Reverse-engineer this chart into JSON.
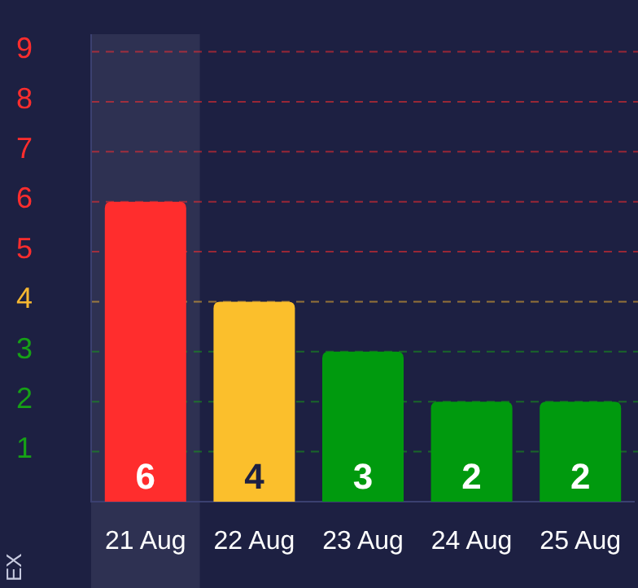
{
  "chart_data": {
    "type": "bar",
    "categories": [
      "21 Aug",
      "22 Aug",
      "23 Aug",
      "24 Aug",
      "25 Aug"
    ],
    "values": [
      6,
      4,
      3,
      2,
      2
    ],
    "data_labels": true,
    "colors": [
      "#ff2d2d",
      "#fbbf2c",
      "#009a0e",
      "#009a0e",
      "#009a0e"
    ],
    "ylim": [
      0,
      9.35
    ],
    "yticks": [
      1,
      2,
      3,
      4,
      5,
      6,
      7,
      8,
      9
    ],
    "ylabel": "EX",
    "ref_lines": [
      {
        "axis": "y",
        "value": 1,
        "color": "#16a116",
        "line_style": "dashed"
      },
      {
        "axis": "y",
        "value": 2,
        "color": "#16a116",
        "line_style": "dashed"
      },
      {
        "axis": "y",
        "value": 3,
        "color": "#16a116",
        "line_style": "dashed"
      },
      {
        "axis": "y",
        "value": 4,
        "color": "#f5b731",
        "line_style": "dashed"
      },
      {
        "axis": "y",
        "value": 5,
        "color": "#ff2d2d",
        "line_style": "dashed"
      },
      {
        "axis": "y",
        "value": 6,
        "color": "#ff2d2d",
        "line_style": "dashed"
      },
      {
        "axis": "y",
        "value": 7,
        "color": "#ff2d2d",
        "line_style": "dashed"
      },
      {
        "axis": "y",
        "value": 8,
        "color": "#ff2d2d",
        "line_style": "dashed"
      },
      {
        "axis": "y",
        "value": 9,
        "color": "#ff2d2d",
        "line_style": "dashed"
      }
    ],
    "bands": [
      {
        "axis": "x",
        "from": "21 Aug",
        "to": "21 Aug",
        "color": "#2e3152"
      }
    ]
  }
}
